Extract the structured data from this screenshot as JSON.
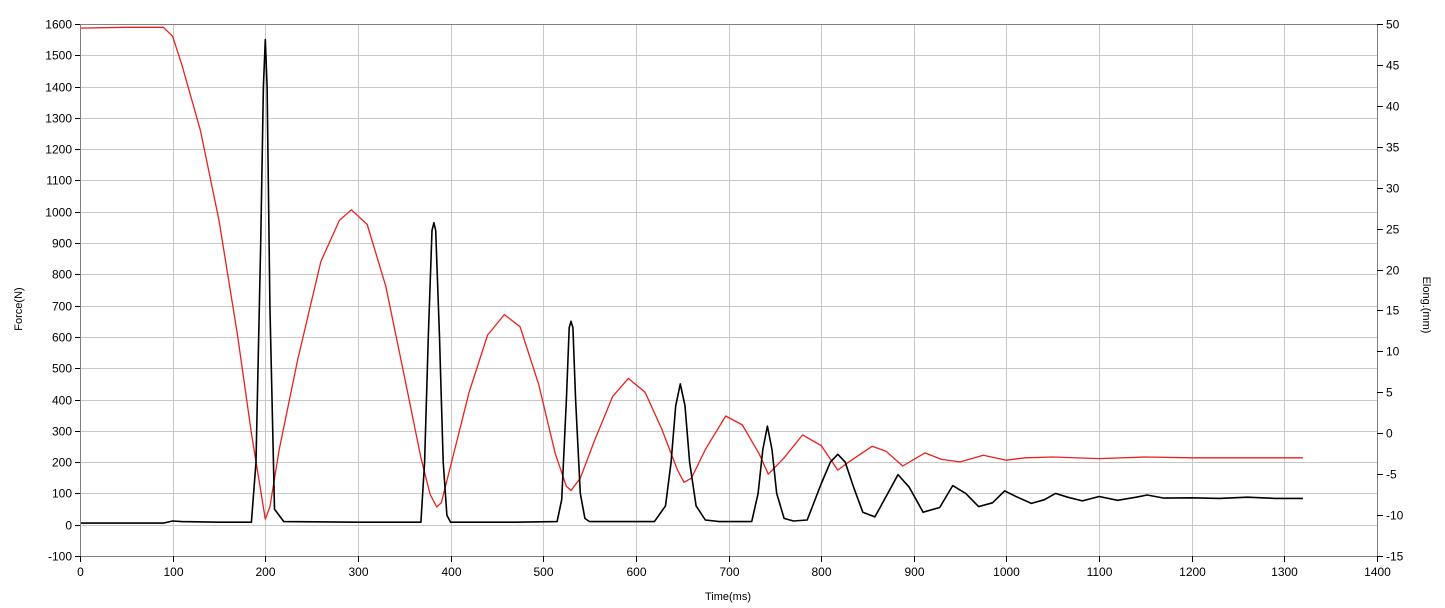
{
  "chart_data": {
    "type": "line",
    "xlabel": "Time(ms)",
    "ylabel_left": "Force(N)",
    "ylabel_right": "Elong.(mm)",
    "xlim": [
      0,
      1400
    ],
    "ylim_left": [
      -100,
      1600
    ],
    "ylim_right": [
      -15,
      50
    ],
    "x_ticks": [
      "0",
      "100",
      "200",
      "300",
      "400",
      "500",
      "600",
      "700",
      "800",
      "900",
      "1000",
      "1100",
      "1200",
      "1300",
      "1400"
    ],
    "y_left_ticks": [
      "-100",
      "0",
      "100",
      "200",
      "300",
      "400",
      "500",
      "600",
      "700",
      "800",
      "900",
      "1000",
      "1100",
      "1200",
      "1300",
      "1400",
      "1500",
      "1600"
    ],
    "y_right_ticks": [
      "-15",
      "-10",
      "-5",
      "0",
      "5",
      "10",
      "15",
      "20",
      "25",
      "30",
      "35",
      "40",
      "45",
      "50"
    ],
    "grid": true,
    "series": [
      {
        "axis": "left",
        "color": "#000000",
        "x": [
          0,
          90,
          100,
          110,
          150,
          185,
          190,
          195,
          198,
          200,
          202,
          205,
          210,
          220,
          300,
          368,
          372,
          376,
          380,
          382,
          384,
          388,
          392,
          396,
          400,
          470,
          515,
          520,
          525,
          528,
          530,
          532,
          535,
          540,
          545,
          550,
          620,
          632,
          638,
          643,
          648,
          653,
          658,
          665,
          675,
          690,
          725,
          732,
          737,
          742,
          747,
          752,
          760,
          770,
          785,
          800,
          810,
          818,
          826,
          835,
          845,
          858,
          872,
          883,
          895,
          910,
          928,
          942,
          956,
          970,
          985,
          998,
          1012,
          1027,
          1041,
          1053,
          1066,
          1082,
          1100,
          1120,
          1140,
          1152,
          1170,
          1200,
          1230,
          1260,
          1290,
          1320
        ],
        "y": [
          5,
          5,
          12,
          10,
          8,
          8,
          200,
          900,
          1400,
          1550,
          1400,
          700,
          50,
          10,
          8,
          8,
          200,
          600,
          940,
          965,
          940,
          600,
          200,
          30,
          8,
          8,
          10,
          80,
          400,
          630,
          650,
          630,
          400,
          100,
          20,
          10,
          10,
          60,
          200,
          380,
          450,
          380,
          200,
          60,
          15,
          10,
          10,
          100,
          240,
          315,
          240,
          100,
          20,
          12,
          15,
          130,
          200,
          225,
          200,
          120,
          40,
          25,
          100,
          160,
          120,
          40,
          55,
          125,
          100,
          58,
          70,
          108,
          88,
          68,
          80,
          100,
          88,
          76,
          90,
          78,
          88,
          95,
          85,
          86,
          84,
          88,
          84,
          84
        ]
      },
      {
        "axis": "right",
        "color": "#e8211e",
        "x": [
          0,
          50,
          90,
          100,
          110,
          130,
          150,
          170,
          185,
          195,
          200,
          205,
          215,
          235,
          260,
          280,
          293,
          310,
          330,
          350,
          368,
          378,
          385,
          390,
          400,
          420,
          440,
          458,
          475,
          495,
          513,
          525,
          530,
          540,
          555,
          575,
          592,
          610,
          628,
          645,
          652,
          660,
          675,
          697,
          715,
          733,
          743,
          760,
          780,
          800,
          818,
          830,
          855,
          870,
          888,
          912,
          930,
          950,
          975,
          1000,
          1020,
          1050,
          1100,
          1150,
          1200,
          1250,
          1320
        ],
        "y": [
          49.5,
          49.6,
          49.6,
          48.5,
          45,
          37,
          26,
          12,
          0,
          -7,
          -10.5,
          -9,
          -2,
          9,
          21,
          26,
          27.3,
          25.5,
          18,
          7,
          -3,
          -7.5,
          -9,
          -8.5,
          -4,
          5,
          12,
          14.5,
          13,
          6,
          -2.5,
          -6.5,
          -7,
          -5.5,
          -1,
          4.5,
          6.7,
          5,
          0.5,
          -4.5,
          -6,
          -5.5,
          -2,
          2.1,
          1,
          -2.5,
          -5,
          -3,
          -0.2,
          -1.5,
          -4.5,
          -3.5,
          -1.6,
          -2.2,
          -4,
          -2.4,
          -3.2,
          -3.5,
          -2.7,
          -3.3,
          -3,
          -2.9,
          -3.1,
          -2.9,
          -3,
          -3,
          -3
        ]
      }
    ]
  }
}
